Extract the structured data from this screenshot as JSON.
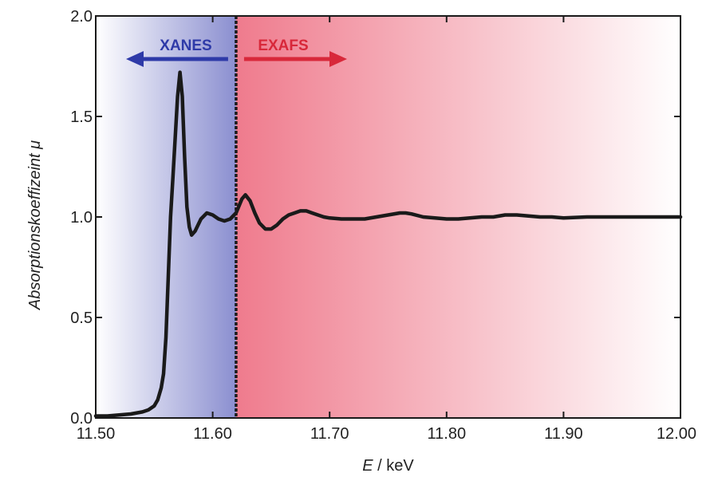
{
  "chart_data": {
    "type": "line",
    "xlabel_var": "E",
    "xlabel_unit": " / keV",
    "ylabel_prefix": "Absorptionskoeffizeint ",
    "ylabel_var": "μ",
    "xlim": [
      11.5,
      12.0
    ],
    "ylim": [
      0.0,
      2.0
    ],
    "x_ticks": [
      "11.50",
      "11.60",
      "11.70",
      "11.80",
      "11.90",
      "12.00"
    ],
    "y_ticks": [
      "0.0",
      "0.5",
      "1.0",
      "1.5",
      "2.0"
    ],
    "grid": false,
    "regions": [
      {
        "label": "XANES",
        "x_range": [
          11.5,
          11.62
        ],
        "color": "#2e3aa8",
        "shade": "#8b8fd0",
        "arrow": "left"
      },
      {
        "label": "EXAFS",
        "x_range": [
          11.62,
          12.0
        ],
        "color": "#d8283a",
        "shade": "#ef7b8d",
        "arrow": "right"
      }
    ],
    "divider_x": 11.62,
    "series": [
      {
        "x": [
          11.5,
          11.51,
          11.52,
          11.53,
          11.54,
          11.545,
          11.55,
          11.553,
          11.556,
          11.558,
          11.56,
          11.562,
          11.564,
          11.566,
          11.568,
          11.57,
          11.572,
          11.574,
          11.576,
          11.578,
          11.58,
          11.582,
          11.585,
          11.59,
          11.595,
          11.6,
          11.605,
          11.61,
          11.615,
          11.62,
          11.625,
          11.628,
          11.632,
          11.636,
          11.64,
          11.645,
          11.65,
          11.655,
          11.66,
          11.665,
          11.67,
          11.675,
          11.68,
          11.685,
          11.69,
          11.695,
          11.7,
          11.71,
          11.72,
          11.73,
          11.74,
          11.75,
          11.76,
          11.765,
          11.77,
          11.78,
          11.79,
          11.8,
          11.81,
          11.82,
          11.83,
          11.84,
          11.85,
          11.86,
          11.87,
          11.88,
          11.89,
          11.9,
          11.92,
          11.94,
          11.96,
          11.98,
          12.0
        ],
        "y": [
          0.01,
          0.01,
          0.015,
          0.02,
          0.03,
          0.04,
          0.06,
          0.09,
          0.15,
          0.22,
          0.4,
          0.7,
          1.0,
          1.2,
          1.4,
          1.6,
          1.72,
          1.6,
          1.3,
          1.05,
          0.95,
          0.91,
          0.93,
          0.99,
          1.02,
          1.01,
          0.99,
          0.98,
          0.99,
          1.02,
          1.09,
          1.11,
          1.08,
          1.02,
          0.97,
          0.94,
          0.94,
          0.96,
          0.99,
          1.01,
          1.02,
          1.03,
          1.03,
          1.02,
          1.01,
          1.0,
          0.995,
          0.99,
          0.99,
          0.99,
          1.0,
          1.01,
          1.02,
          1.02,
          1.015,
          1.0,
          0.995,
          0.99,
          0.99,
          0.995,
          1.0,
          1.0,
          1.01,
          1.01,
          1.005,
          1.0,
          1.0,
          0.995,
          1.0,
          1.0,
          1.0,
          1.0,
          1.0
        ]
      }
    ]
  }
}
